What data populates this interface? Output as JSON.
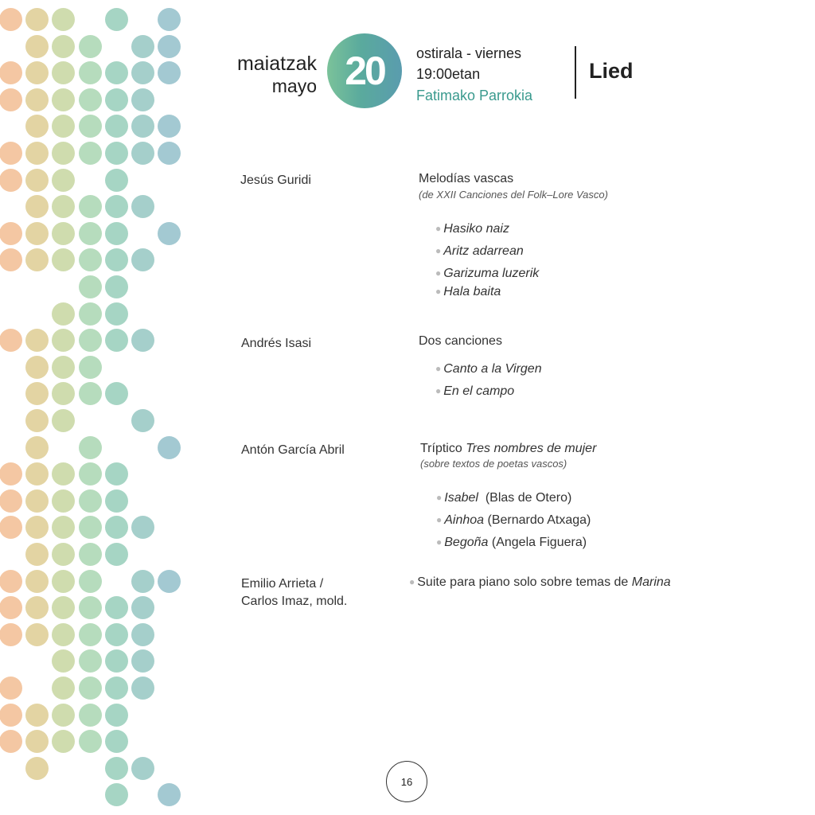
{
  "header": {
    "month_basque": "maiatzak",
    "month_spanish": "mayo",
    "day": "20",
    "weekday": "ostirala - viernes",
    "time": "19:00etan",
    "venue": "Fatimako Parrokia",
    "category": "Lied"
  },
  "program": [
    {
      "composer": "Jesús Guridi",
      "work": "Melodías vascas",
      "note": "(de XXII Canciones del Folk–Lore Vasco)",
      "pieces": [
        "Hasiko naiz",
        "Aritz adarrean",
        "Garizuma luzerik",
        "Hala baita"
      ]
    },
    {
      "composer": "Andrés Isasi",
      "work": "Dos canciones",
      "pieces": [
        "Canto a la Virgen",
        "En el campo"
      ]
    },
    {
      "composer": "Antón García Abril",
      "work_prefix": "Tríptico",
      "work_title": "Tres nombres de mujer",
      "note": "(sobre textos de poetas vascos)",
      "pieces": [
        {
          "title": "Isabel",
          "poet": "(Blas de Otero)"
        },
        {
          "title": "Ainhoa",
          "poet": "(Bernardo Atxaga)"
        },
        {
          "title": "Begoña",
          "poet": "(Angela Figuera)"
        }
      ]
    },
    {
      "composer_line1": "Emilio Arrieta /",
      "composer_line2": "Carlos Imaz, mold.",
      "work_prefix": "Suite para piano solo sobre temas de",
      "work_title": "Marina"
    }
  ],
  "page_number": "16",
  "colors": {
    "accent_teal": "#3a9a8e",
    "dot_peach": "#f4c7a3",
    "dot_tan": "#e3d4a3",
    "dot_olive": "#cfdcae",
    "dot_green": "#b6dcbd",
    "dot_mint": "#a6d5c4",
    "dot_teal": "#a5cfcb",
    "dot_blue": "#a3c9d2"
  }
}
